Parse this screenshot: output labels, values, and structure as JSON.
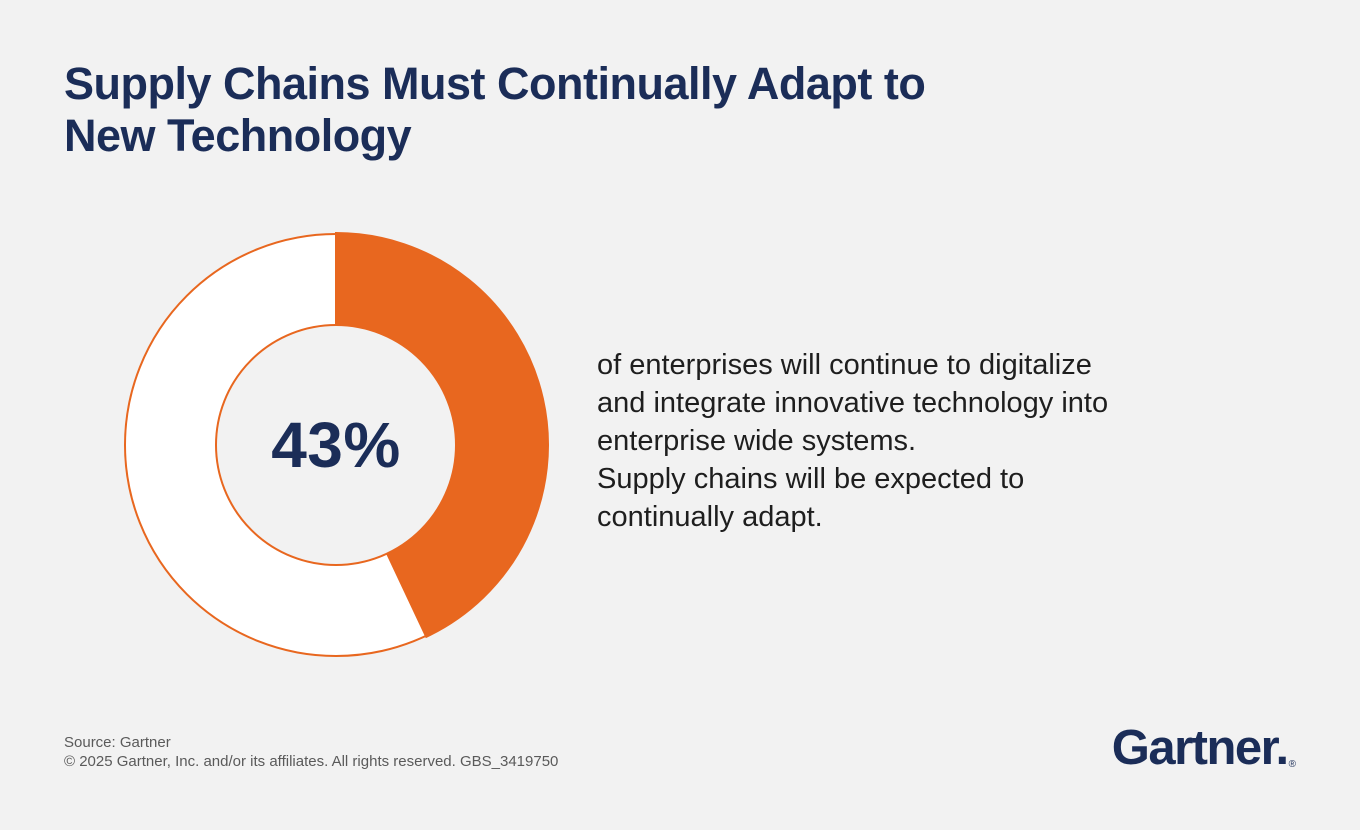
{
  "page": {
    "title": "Supply Chains Must Continually Adapt to\nNew Technology"
  },
  "chart_data": {
    "type": "pie",
    "subtype": "donut",
    "title": "Supply Chains Must Continually Adapt to New Technology",
    "categories": [
      "enterprises that will continue to digitalize and integrate innovative technology",
      "remainder"
    ],
    "values": [
      43,
      57
    ],
    "colors": [
      "#E8671F",
      "#FFFFFF"
    ],
    "outline_color": "#E8671F",
    "center_label": "43%",
    "start_angle_deg": 0,
    "direction": "clockwise",
    "legend": "none"
  },
  "stat": {
    "value_label": "43%",
    "description": "of enterprises will continue to digitalize\nand integrate innovative technology into\nenterprise wide systems.\nSupply chains will be expected to\ncontinually adapt."
  },
  "footer": {
    "source": "Source: Gartner",
    "copyright": "© 2025 Gartner, Inc. and/or its affiliates. All rights reserved. GBS_3419750",
    "logo_text": "Gartner.",
    "logo_registered": "®"
  },
  "colors": {
    "accent_orange": "#E8671F",
    "brand_navy": "#1B2D58",
    "body_text": "#1E1E1E",
    "muted_text": "#5A5A5A",
    "background": "#F2F2F2"
  }
}
